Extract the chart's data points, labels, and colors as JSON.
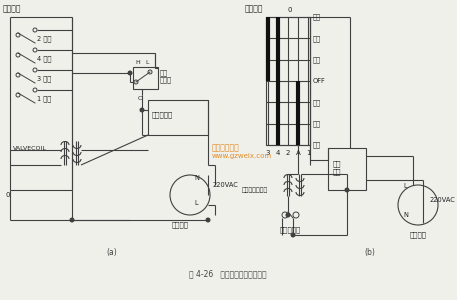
{
  "title": "图 4-26   机械控制式四通阀电路",
  "bg_color": "#f0f0eb",
  "line_color": "#404040",
  "text_color": "#222222",
  "watermark_line1": "精通维修下载",
  "watermark_line2": "www.gzweix.com",
  "watermark_color": "#e08010",
  "label_a": "(a)",
  "label_b": "(b)",
  "switch_labels_left": [
    "2 高风",
    "4 制冷",
    "3 制热",
    "1 低风"
  ],
  "right_side_labels": [
    "高冷",
    "低冷",
    "高风",
    "OFF",
    "低风",
    "低热",
    "高热"
  ],
  "col_labels": [
    "3",
    "4",
    "2",
    "A",
    "1"
  ]
}
